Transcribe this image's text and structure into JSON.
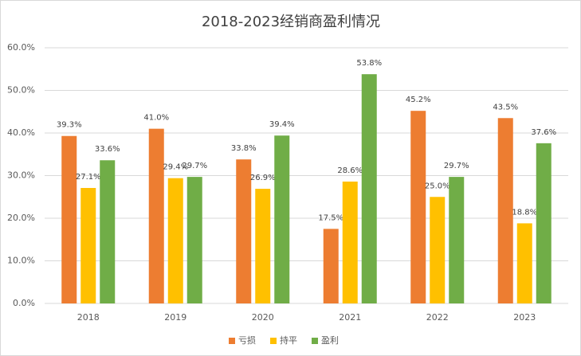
{
  "chart_data": {
    "type": "bar",
    "title": "2018-2023经销商盈利情况",
    "categories": [
      "2018",
      "2019",
      "2020",
      "2021",
      "2022",
      "2023"
    ],
    "series": [
      {
        "name": "亏损",
        "color": "#ed7d31",
        "values": [
          39.3,
          41.0,
          33.8,
          17.5,
          45.2,
          43.5
        ],
        "value_labels": [
          "39.3%",
          "41.0%",
          "33.8%",
          "17.5%",
          "45.2%",
          "43.5%"
        ]
      },
      {
        "name": "持平",
        "color": "#ffc000",
        "values": [
          27.1,
          29.4,
          26.9,
          28.6,
          25.0,
          18.8
        ],
        "value_labels": [
          "27.1%",
          "29.4%",
          "26.9%",
          "28.6%",
          "25.0%",
          "18.8%"
        ]
      },
      {
        "name": "盈利",
        "color": "#70ad47",
        "values": [
          33.6,
          29.7,
          39.4,
          53.8,
          29.7,
          37.6
        ],
        "value_labels": [
          "33.6%",
          "29.7%",
          "39.4%",
          "53.8%",
          "29.7%",
          "37.6%"
        ]
      }
    ],
    "ylim": [
      0,
      60
    ],
    "yticks": [
      {
        "value": 0,
        "label": "0.0%"
      },
      {
        "value": 10,
        "label": "10.0%"
      },
      {
        "value": 20,
        "label": "20.0%"
      },
      {
        "value": 30,
        "label": "30.0%"
      },
      {
        "value": 40,
        "label": "40.0%"
      },
      {
        "value": 50,
        "label": "50.0%"
      },
      {
        "value": 60,
        "label": "60.0%"
      }
    ],
    "grid": true,
    "legend": "bottom"
  }
}
